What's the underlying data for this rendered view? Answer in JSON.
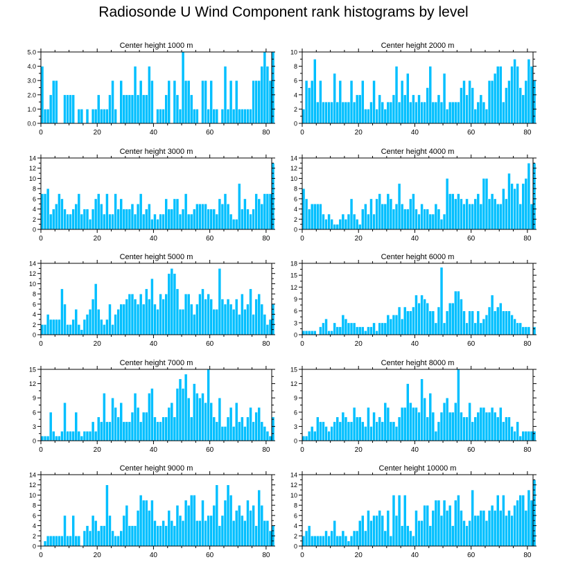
{
  "title": "Radiosonde U Wind Component rank histograms by level",
  "colors": {
    "bar": "#00bfff",
    "bar_edge": "#ffffff",
    "axis": "#000000"
  },
  "chart_data": [
    {
      "type": "bar",
      "title": "Center height 1000 m",
      "x_start": 0,
      "xlim": [
        0,
        82
      ],
      "xticks": [
        0,
        20,
        40,
        60,
        80
      ],
      "ylim": [
        0,
        5
      ],
      "yticks": [
        0,
        1,
        2,
        3,
        4,
        5
      ],
      "ytick_labels": [
        "0.0",
        "1.0",
        "2.0",
        "3.0",
        "4.0",
        "5.0"
      ],
      "values": [
        4,
        1,
        1,
        2,
        3,
        3,
        0,
        0,
        2,
        2,
        2,
        2,
        0,
        1,
        1,
        0,
        1,
        0,
        1,
        1,
        2,
        1,
        1,
        1,
        2,
        3,
        1,
        0,
        3,
        2,
        2,
        2,
        2,
        4,
        2,
        3,
        2,
        2,
        4,
        3,
        0,
        1,
        1,
        1,
        2,
        3,
        0,
        3,
        2,
        1,
        5,
        3,
        3,
        2,
        1,
        1,
        0,
        3,
        3,
        1,
        3,
        1,
        1,
        0,
        1,
        4,
        1,
        3,
        1,
        3,
        1,
        1,
        1,
        1,
        1,
        3,
        3,
        3,
        4,
        5,
        4,
        3,
        5
      ]
    },
    {
      "type": "bar",
      "title": "Center height 2000 m",
      "x_start": 0,
      "xlim": [
        0,
        82
      ],
      "xticks": [
        0,
        20,
        40,
        60,
        80
      ],
      "ylim": [
        0,
        10
      ],
      "yticks": [
        0,
        2,
        4,
        6,
        8,
        10
      ],
      "ytick_labels": [
        "0",
        "2",
        "4",
        "6",
        "8",
        "10"
      ],
      "values": [
        2,
        6,
        5,
        6,
        9,
        3,
        6,
        3,
        3,
        3,
        3,
        7,
        3,
        6,
        3,
        3,
        3,
        6,
        3,
        4,
        4,
        6,
        2,
        2,
        3,
        6,
        2,
        4,
        3,
        2,
        3,
        3,
        4,
        8,
        3,
        6,
        4,
        7,
        3,
        4,
        3,
        4,
        3,
        3,
        5,
        8,
        3,
        3,
        4,
        3,
        7,
        2,
        3,
        3,
        3,
        3,
        5,
        6,
        4,
        6,
        5,
        2,
        3,
        4,
        3,
        2,
        6,
        6,
        7,
        8,
        8,
        3,
        5,
        6,
        8,
        9,
        8,
        5,
        4,
        6,
        9,
        8,
        6
      ]
    },
    {
      "type": "bar",
      "title": "Center height 3000 m",
      "x_start": 0,
      "xlim": [
        0,
        82
      ],
      "xticks": [
        0,
        20,
        40,
        60,
        80
      ],
      "ylim": [
        0,
        14
      ],
      "yticks": [
        0,
        2,
        4,
        6,
        8,
        10,
        12,
        14
      ],
      "ytick_labels": [
        "0",
        "2",
        "4",
        "6",
        "8",
        "10",
        "12",
        "14"
      ],
      "values": [
        7,
        7,
        8,
        3,
        4,
        5,
        7,
        6,
        4,
        3,
        3,
        4,
        5,
        7,
        3,
        4,
        4,
        2,
        4,
        6,
        7,
        5,
        3,
        7,
        3,
        3,
        7,
        4,
        6,
        4,
        4,
        4,
        5,
        3,
        5,
        7,
        3,
        4,
        5,
        2,
        3,
        2,
        3,
        3,
        6,
        4,
        4,
        6,
        6,
        3,
        4,
        7,
        3,
        3,
        4,
        5,
        5,
        5,
        5,
        4,
        4,
        4,
        3,
        6,
        5,
        7,
        5,
        3,
        2,
        2,
        9,
        4,
        6,
        4,
        3,
        4,
        7,
        6,
        5,
        7,
        7,
        7,
        13
      ]
    },
    {
      "type": "bar",
      "title": "Center height 4000 m",
      "x_start": 0,
      "xlim": [
        0,
        82
      ],
      "xticks": [
        0,
        20,
        40,
        60,
        80
      ],
      "ylim": [
        0,
        14
      ],
      "yticks": [
        0,
        2,
        4,
        6,
        8,
        10,
        12,
        14
      ],
      "ytick_labels": [
        "0",
        "2",
        "4",
        "6",
        "8",
        "10",
        "12",
        "14"
      ],
      "values": [
        8,
        6,
        4,
        5,
        5,
        5,
        5,
        3,
        2,
        3,
        2,
        1,
        1,
        2,
        3,
        2,
        3,
        6,
        3,
        2,
        1,
        4,
        5,
        3,
        6,
        3,
        6,
        7,
        5,
        5,
        7,
        6,
        4,
        5,
        9,
        5,
        4,
        4,
        6,
        7,
        4,
        3,
        5,
        4,
        4,
        3,
        3,
        5,
        4,
        2,
        3,
        10,
        7,
        7,
        6,
        7,
        6,
        5,
        6,
        5,
        5,
        6,
        7,
        5,
        10,
        10,
        6,
        7,
        6,
        5,
        5,
        8,
        6,
        11,
        9,
        8,
        9,
        5,
        9,
        10,
        13,
        5,
        13
      ]
    },
    {
      "type": "bar",
      "title": "Center height 5000 m",
      "x_start": 0,
      "xlim": [
        0,
        82
      ],
      "xticks": [
        0,
        20,
        40,
        60,
        80
      ],
      "ylim": [
        0,
        14
      ],
      "yticks": [
        0,
        2,
        4,
        6,
        8,
        10,
        12,
        14
      ],
      "ytick_labels": [
        "0",
        "2",
        "4",
        "6",
        "8",
        "10",
        "12",
        "14"
      ],
      "values": [
        2,
        2,
        4,
        3,
        3,
        3,
        3,
        9,
        6,
        2,
        2,
        3,
        5,
        2,
        1,
        3,
        4,
        5,
        7,
        10,
        5,
        3,
        2,
        3,
        6,
        2,
        4,
        5,
        6,
        6,
        7,
        8,
        8,
        7,
        6,
        8,
        6,
        9,
        7,
        11,
        6,
        5,
        8,
        7,
        8,
        12,
        13,
        12,
        9,
        5,
        5,
        8,
        8,
        6,
        4,
        6,
        8,
        9,
        7,
        8,
        7,
        5,
        5,
        13,
        7,
        6,
        7,
        6,
        5,
        7,
        4,
        8,
        5,
        6,
        9,
        4,
        7,
        8,
        6,
        4,
        2,
        3,
        6
      ]
    },
    {
      "type": "bar",
      "title": "Center height 6000 m",
      "x_start": 0,
      "xlim": [
        0,
        82
      ],
      "xticks": [
        0,
        20,
        40,
        60,
        80
      ],
      "ylim": [
        0,
        18
      ],
      "yticks": [
        0,
        3,
        6,
        9,
        12,
        15,
        18
      ],
      "ytick_labels": [
        "0",
        "3",
        "6",
        "9",
        "12",
        "15",
        "18"
      ],
      "values": [
        1,
        1,
        1,
        1,
        1,
        0,
        2,
        3,
        4,
        1,
        1,
        3,
        2,
        2,
        5,
        4,
        3,
        3,
        3,
        2,
        2,
        2,
        1,
        2,
        2,
        3,
        1,
        3,
        3,
        3,
        5,
        4,
        5,
        5,
        7,
        4,
        7,
        6,
        6,
        7,
        10,
        8,
        10,
        9,
        8,
        6,
        6,
        3,
        7,
        17,
        3,
        6,
        8,
        8,
        11,
        11,
        9,
        6,
        3,
        6,
        6,
        3,
        6,
        3,
        4,
        5,
        7,
        10,
        6,
        7,
        8,
        6,
        6,
        6,
        5,
        4,
        3,
        3,
        2,
        2,
        2,
        0,
        2
      ]
    },
    {
      "type": "bar",
      "title": "Center height 7000 m",
      "x_start": 0,
      "xlim": [
        0,
        82
      ],
      "xticks": [
        0,
        20,
        40,
        60,
        80
      ],
      "ylim": [
        0,
        15
      ],
      "yticks": [
        0,
        3,
        6,
        9,
        12,
        15
      ],
      "ytick_labels": [
        "0",
        "3",
        "6",
        "9",
        "12",
        "15"
      ],
      "values": [
        1,
        1,
        1,
        6,
        2,
        1,
        1,
        2,
        8,
        2,
        2,
        2,
        6,
        2,
        1,
        2,
        2,
        2,
        4,
        2,
        5,
        4,
        10,
        4,
        4,
        9,
        7,
        5,
        8,
        4,
        4,
        4,
        6,
        10,
        7,
        4,
        6,
        6,
        10,
        11,
        5,
        4,
        4,
        5,
        5,
        7,
        8,
        5,
        11,
        13,
        11,
        14,
        9,
        5,
        12,
        10,
        9,
        10,
        8,
        15,
        8,
        5,
        4,
        9,
        3,
        3,
        5,
        7,
        3,
        8,
        4,
        5,
        3,
        5,
        7,
        4,
        6,
        7,
        4,
        3,
        2,
        1,
        5
      ]
    },
    {
      "type": "bar",
      "title": "Center height 8000 m",
      "x_start": 0,
      "xlim": [
        0,
        82
      ],
      "xticks": [
        0,
        20,
        40,
        60,
        80
      ],
      "ylim": [
        0,
        15
      ],
      "yticks": [
        0,
        3,
        6,
        9,
        12,
        15
      ],
      "ytick_labels": [
        "0",
        "3",
        "6",
        "9",
        "12",
        "15"
      ],
      "values": [
        1,
        1,
        2,
        3,
        2,
        5,
        4,
        4,
        3,
        2,
        3,
        4,
        5,
        4,
        6,
        5,
        4,
        4,
        7,
        5,
        5,
        4,
        3,
        7,
        3,
        6,
        4,
        5,
        4,
        8,
        7,
        4,
        4,
        3,
        5,
        7,
        7,
        12,
        8,
        7,
        7,
        6,
        13,
        9,
        5,
        10,
        6,
        2,
        4,
        6,
        8,
        9,
        6,
        6,
        8,
        15,
        6,
        5,
        5,
        8,
        4,
        5,
        6,
        7,
        7,
        6,
        6,
        7,
        6,
        5,
        7,
        4,
        5,
        5,
        3,
        2,
        4,
        1,
        2,
        2,
        2,
        2,
        2
      ]
    },
    {
      "type": "bar",
      "title": "Center height 9000 m",
      "x_start": 0,
      "xlim": [
        0,
        82
      ],
      "xticks": [
        0,
        20,
        40,
        60,
        80
      ],
      "ylim": [
        0,
        14
      ],
      "yticks": [
        0,
        2,
        4,
        6,
        8,
        10,
        12,
        14
      ],
      "ytick_labels": [
        "0",
        "2",
        "4",
        "6",
        "8",
        "10",
        "12",
        "14"
      ],
      "values": [
        0,
        1,
        2,
        2,
        2,
        2,
        2,
        2,
        6,
        2,
        2,
        6,
        2,
        2,
        0,
        3,
        4,
        3,
        6,
        5,
        3,
        4,
        4,
        12,
        6,
        3,
        2,
        2,
        3,
        6,
        8,
        4,
        4,
        4,
        7,
        10,
        9,
        9,
        7,
        9,
        5,
        4,
        4,
        5,
        4,
        7,
        5,
        4,
        8,
        6,
        5,
        9,
        8,
        10,
        10,
        5,
        5,
        9,
        5,
        6,
        6,
        8,
        12,
        4,
        6,
        9,
        12,
        10,
        5,
        7,
        8,
        6,
        5,
        9,
        7,
        8,
        4,
        11,
        8,
        5,
        5,
        3,
        4
      ]
    },
    {
      "type": "bar",
      "title": "Center height 10000 m",
      "x_start": 0,
      "xlim": [
        0,
        82
      ],
      "xticks": [
        0,
        20,
        40,
        60,
        80
      ],
      "ylim": [
        0,
        14
      ],
      "yticks": [
        0,
        2,
        4,
        6,
        8,
        10,
        12,
        14
      ],
      "ytick_labels": [
        "0",
        "2",
        "4",
        "6",
        "8",
        "10",
        "12",
        "14"
      ],
      "values": [
        2,
        3,
        4,
        2,
        2,
        2,
        2,
        2,
        3,
        2,
        3,
        5,
        2,
        2,
        3,
        2,
        1,
        2,
        3,
        3,
        5,
        6,
        3,
        7,
        5,
        6,
        6,
        7,
        6,
        3,
        7,
        2,
        10,
        6,
        10,
        4,
        10,
        4,
        3,
        2,
        7,
        5,
        5,
        8,
        8,
        4,
        7,
        9,
        9,
        6,
        9,
        7,
        8,
        4,
        9,
        10,
        7,
        5,
        4,
        5,
        11,
        6,
        6,
        7,
        7,
        5,
        7,
        8,
        7,
        10,
        7,
        10,
        6,
        7,
        6,
        8,
        9,
        10,
        10,
        7,
        11,
        9,
        13
      ]
    }
  ]
}
